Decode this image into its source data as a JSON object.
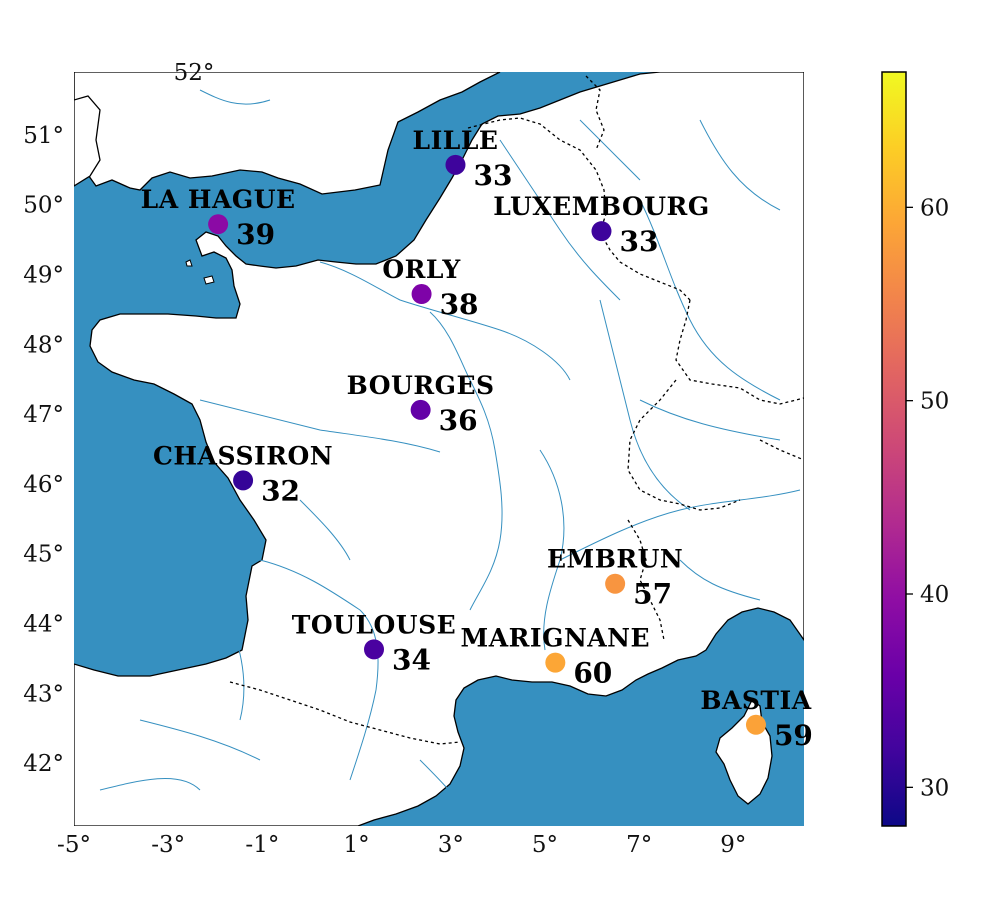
{
  "map": {
    "lon_range": [
      -5,
      10.5
    ],
    "lat_range": [
      41.1,
      51.9
    ],
    "x_ticks": [
      {
        "lon": -5,
        "label": "-5°"
      },
      {
        "lon": -3,
        "label": "-3°"
      },
      {
        "lon": -1,
        "label": "-1°"
      },
      {
        "lon": 1,
        "label": "1°"
      },
      {
        "lon": 3,
        "label": "3°"
      },
      {
        "lon": 5,
        "label": "5°"
      },
      {
        "lon": 7,
        "label": "7°"
      },
      {
        "lon": 9,
        "label": "9°"
      }
    ],
    "y_ticks": [
      {
        "lat": 42,
        "label": "42°"
      },
      {
        "lat": 43,
        "label": "43°"
      },
      {
        "lat": 44,
        "label": "44°"
      },
      {
        "lat": 45,
        "label": "45°"
      },
      {
        "lat": 46,
        "label": "46°"
      },
      {
        "lat": 47,
        "label": "47°"
      },
      {
        "lat": 48,
        "label": "48°"
      },
      {
        "lat": 49,
        "label": "49°"
      },
      {
        "lat": 50,
        "label": "50°"
      },
      {
        "lat": 51,
        "label": "51°"
      }
    ],
    "top_lat_label": "52°",
    "colors": {
      "sea": "#3690c0",
      "land": "#ffffff",
      "rivers": "#3690c0",
      "borders": "#000000",
      "coast": "#000000"
    }
  },
  "stations": [
    {
      "name": "LILLE",
      "value": "33",
      "num": 33,
      "lon": 3.1,
      "lat": 50.57,
      "color": "#3e049c"
    },
    {
      "name": "LUXEMBOURG",
      "value": "33",
      "num": 33,
      "lon": 6.2,
      "lat": 49.62,
      "color": "#3e049c"
    },
    {
      "name": "LA HAGUE",
      "value": "39",
      "num": 39,
      "lon": -1.94,
      "lat": 49.72,
      "color": "#8b0aa5"
    },
    {
      "name": "ORLY",
      "value": "38",
      "num": 38,
      "lon": 2.38,
      "lat": 48.72,
      "color": "#7e03a8"
    },
    {
      "name": "BOURGES",
      "value": "36",
      "num": 36,
      "lon": 2.36,
      "lat": 47.06,
      "color": "#6300a7"
    },
    {
      "name": "CHASSIRON",
      "value": "32",
      "num": 32,
      "lon": -1.41,
      "lat": 46.05,
      "color": "#350498"
    },
    {
      "name": "TOULOUSE",
      "value": "34",
      "num": 34,
      "lon": 1.37,
      "lat": 43.63,
      "color": "#4a02a0"
    },
    {
      "name": "EMBRUN",
      "value": "57",
      "num": 57,
      "lon": 6.49,
      "lat": 44.57,
      "color": "#f89540"
    },
    {
      "name": "MARIGNANE",
      "value": "60",
      "num": 60,
      "lon": 5.22,
      "lat": 43.44,
      "color": "#fca636"
    },
    {
      "name": "BASTIA",
      "value": "59",
      "num": 59,
      "lon": 9.48,
      "lat": 42.55,
      "color": "#fba238"
    }
  ],
  "colorbar": {
    "colormap": "plasma",
    "range": [
      28,
      67
    ],
    "ticks": [
      {
        "value": 30,
        "label": "30"
      },
      {
        "value": 40,
        "label": "40"
      },
      {
        "value": 50,
        "label": "50"
      },
      {
        "value": 60,
        "label": "60"
      }
    ],
    "stops": [
      "#0d0887",
      "#41049d",
      "#6a00a8",
      "#8f0da4",
      "#b12a90",
      "#cc4778",
      "#e16462",
      "#f2844b",
      "#fca636",
      "#fcce25",
      "#f0f921"
    ]
  }
}
